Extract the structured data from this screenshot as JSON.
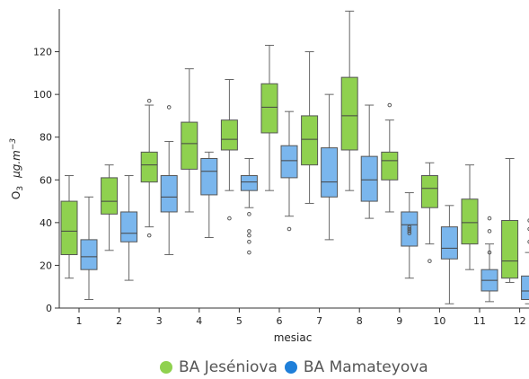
{
  "chart_data": {
    "type": "box",
    "xlabel": "mesiac",
    "ylabel_main": "O",
    "ylabel_sub": "3",
    "ylabel_unit": "μg.m",
    "ylabel_exp": "−3",
    "categories": [
      "1",
      "2",
      "3",
      "4",
      "5",
      "6",
      "7",
      "8",
      "9",
      "10",
      "11",
      "12"
    ],
    "ylim": [
      0,
      140
    ],
    "yticks": [
      0,
      20,
      40,
      60,
      80,
      100,
      120
    ],
    "legend_position": "bottom-center",
    "series": [
      {
        "name": "BA Jeséniova",
        "color": "#8fd14f",
        "boxes": [
          {
            "low": 14,
            "q1": 25,
            "median": 36,
            "q3": 50,
            "high": 62,
            "outliers": []
          },
          {
            "low": 27,
            "q1": 44,
            "median": 50,
            "q3": 61,
            "high": 67,
            "outliers": []
          },
          {
            "low": 38,
            "q1": 59,
            "median": 67,
            "q3": 73,
            "high": 95,
            "outliers": [
              34,
              97
            ]
          },
          {
            "low": 45,
            "q1": 65,
            "median": 77,
            "q3": 87,
            "high": 112,
            "outliers": []
          },
          {
            "low": 55,
            "q1": 74,
            "median": 79,
            "q3": 88,
            "high": 107,
            "outliers": [
              42
            ]
          },
          {
            "low": 55,
            "q1": 82,
            "median": 94,
            "q3": 105,
            "high": 123,
            "outliers": []
          },
          {
            "low": 49,
            "q1": 67,
            "median": 79,
            "q3": 90,
            "high": 120,
            "outliers": []
          },
          {
            "low": 55,
            "q1": 74,
            "median": 90,
            "q3": 108,
            "high": 139,
            "outliers": []
          },
          {
            "low": 45,
            "q1": 60,
            "median": 69,
            "q3": 73,
            "high": 88,
            "outliers": [
              95
            ]
          },
          {
            "low": 30,
            "q1": 47,
            "median": 56,
            "q3": 62,
            "high": 68,
            "outliers": [
              22
            ]
          },
          {
            "low": 18,
            "q1": 30,
            "median": 40,
            "q3": 51,
            "high": 67,
            "outliers": []
          },
          {
            "low": 12,
            "q1": 14,
            "median": 22,
            "q3": 41,
            "high": 70,
            "outliers": []
          }
        ]
      },
      {
        "name": "BA Mamateyova",
        "color": "#7ab6ed",
        "boxes": [
          {
            "low": 4,
            "q1": 18,
            "median": 24,
            "q3": 32,
            "high": 52,
            "outliers": []
          },
          {
            "low": 13,
            "q1": 31,
            "median": 35,
            "q3": 45,
            "high": 62,
            "outliers": []
          },
          {
            "low": 25,
            "q1": 45,
            "median": 52,
            "q3": 62,
            "high": 78,
            "outliers": [
              94
            ]
          },
          {
            "low": 33,
            "q1": 53,
            "median": 64,
            "q3": 70,
            "high": 73,
            "outliers": []
          },
          {
            "low": 47,
            "q1": 55,
            "median": 59,
            "q3": 62,
            "high": 70,
            "outliers": [
              26,
              31,
              34,
              36,
              44
            ]
          },
          {
            "low": 43,
            "q1": 61,
            "median": 69,
            "q3": 76,
            "high": 92,
            "outliers": [
              37
            ]
          },
          {
            "low": 32,
            "q1": 52,
            "median": 59,
            "q3": 75,
            "high": 100,
            "outliers": []
          },
          {
            "low": 42,
            "q1": 50,
            "median": 60,
            "q3": 71,
            "high": 95,
            "outliers": []
          },
          {
            "low": 14,
            "q1": 29,
            "median": 39,
            "q3": 45,
            "high": 54,
            "outliers": [
              35,
              36,
              37,
              38
            ]
          },
          {
            "low": 2,
            "q1": 23,
            "median": 28,
            "q3": 38,
            "high": 48,
            "outliers": []
          },
          {
            "low": 3,
            "q1": 8,
            "median": 13,
            "q3": 18,
            "high": 30,
            "outliers": [
              26,
              36,
              42
            ]
          },
          {
            "low": 2,
            "q1": 4,
            "median": 8,
            "q3": 15,
            "high": 26,
            "outliers": [
              31,
              37,
              41
            ]
          }
        ]
      }
    ]
  }
}
